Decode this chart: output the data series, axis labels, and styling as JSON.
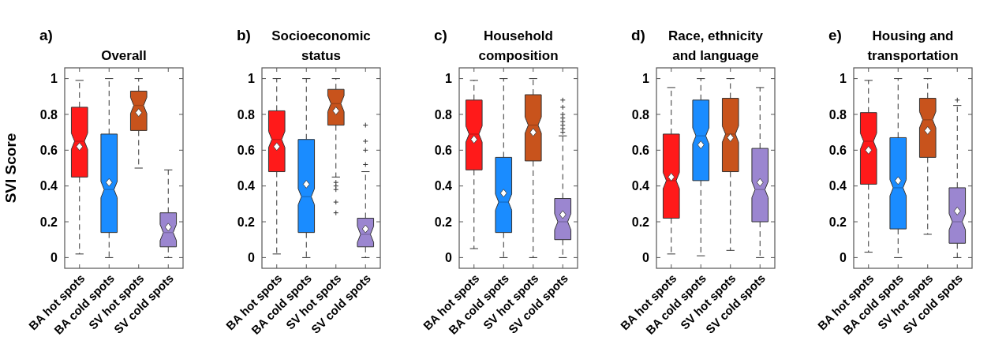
{
  "chart_data": [
    {
      "type": "box",
      "title": "Overall",
      "annotations": [
        "a)"
      ],
      "ylabel": "SVI Score",
      "categories": [
        "BA hot spots",
        "BA cold spots",
        "SV hot spots",
        "SV cold spots"
      ],
      "colors": [
        "#ff1a1a",
        "#1a8cff",
        "#c8531c",
        "#9b86d0"
      ],
      "ylim": [
        -0.06,
        1.06
      ],
      "yticks": [
        0,
        0.2,
        0.4,
        0.6,
        0.8,
        1
      ],
      "boxes": [
        {
          "low": 0.02,
          "q1": 0.45,
          "median": 0.65,
          "q3": 0.84,
          "high": 0.99,
          "mean": 0.62
        },
        {
          "low": 0,
          "q1": 0.14,
          "median": 0.38,
          "q3": 0.69,
          "high": 1,
          "mean": 0.42
        },
        {
          "low": 0.5,
          "q1": 0.71,
          "median": 0.85,
          "q3": 0.93,
          "high": 1,
          "mean": 0.81
        },
        {
          "low": 0,
          "q1": 0.06,
          "median": 0.14,
          "q3": 0.25,
          "high": 0.49,
          "mean": 0.17
        }
      ]
    },
    {
      "type": "box",
      "title": "Socioeconomic status",
      "annotations": [
        "b)"
      ],
      "categories": [
        "BA hot spots",
        "BA cold spots",
        "SV hot spots",
        "SV cold spots"
      ],
      "colors": [
        "#ff1a1a",
        "#1a8cff",
        "#c8531c",
        "#9b86d0"
      ],
      "ylim": [
        -0.06,
        1.06
      ],
      "yticks": [
        0,
        0.2,
        0.4,
        0.6,
        0.8,
        1
      ],
      "boxes": [
        {
          "low": 0.02,
          "q1": 0.48,
          "median": 0.66,
          "q3": 0.82,
          "high": 1,
          "mean": 0.62
        },
        {
          "low": 0,
          "q1": 0.14,
          "median": 0.34,
          "q3": 0.66,
          "high": 1,
          "mean": 0.41
        },
        {
          "low": 0.45,
          "q1": 0.74,
          "median": 0.86,
          "q3": 0.94,
          "high": 1,
          "mean": 0.82,
          "outliers": [
            0.42,
            0.4,
            0.38,
            0.31,
            0.25
          ]
        },
        {
          "low": 0,
          "q1": 0.06,
          "median": 0.13,
          "q3": 0.22,
          "high": 0.48,
          "mean": 0.16,
          "outliers": [
            0.52,
            0.6,
            0.65,
            0.74
          ]
        }
      ]
    },
    {
      "type": "box",
      "title": "Household composition",
      "annotations": [
        "c)"
      ],
      "categories": [
        "BA hot spots",
        "BA cold spots",
        "SV hot spots",
        "SV cold spots"
      ],
      "colors": [
        "#ff1a1a",
        "#1a8cff",
        "#c8531c",
        "#9b86d0"
      ],
      "ylim": [
        -0.06,
        1.06
      ],
      "yticks": [
        0,
        0.2,
        0.4,
        0.6,
        0.8,
        1
      ],
      "boxes": [
        {
          "low": 0.05,
          "q1": 0.49,
          "median": 0.69,
          "q3": 0.88,
          "high": 0.99,
          "mean": 0.66
        },
        {
          "low": 0,
          "q1": 0.14,
          "median": 0.31,
          "q3": 0.56,
          "high": 1,
          "mean": 0.36
        },
        {
          "low": 0,
          "q1": 0.54,
          "median": 0.74,
          "q3": 0.91,
          "high": 1,
          "mean": 0.7
        },
        {
          "low": 0,
          "q1": 0.1,
          "median": 0.2,
          "q3": 0.33,
          "high": 0.68,
          "mean": 0.24,
          "outliers": [
            0.7,
            0.72,
            0.74,
            0.76,
            0.78,
            0.8,
            0.84,
            0.88
          ]
        }
      ]
    },
    {
      "type": "box",
      "title": "Race, ethnicity and language",
      "annotations": [
        "d)"
      ],
      "categories": [
        "BA hot spots",
        "BA cold spots",
        "SV hot spots",
        "SV cold spots"
      ],
      "colors": [
        "#ff1a1a",
        "#1a8cff",
        "#c8531c",
        "#9b86d0"
      ],
      "ylim": [
        -0.06,
        1.06
      ],
      "yticks": [
        0,
        0.2,
        0.4,
        0.6,
        0.8,
        1
      ],
      "boxes": [
        {
          "low": 0.02,
          "q1": 0.22,
          "median": 0.43,
          "q3": 0.69,
          "high": 0.95,
          "mean": 0.45
        },
        {
          "low": 0.01,
          "q1": 0.43,
          "median": 0.68,
          "q3": 0.88,
          "high": 1,
          "mean": 0.63
        },
        {
          "low": 0.04,
          "q1": 0.48,
          "median": 0.69,
          "q3": 0.89,
          "high": 1,
          "mean": 0.67
        },
        {
          "low": 0,
          "q1": 0.2,
          "median": 0.38,
          "q3": 0.61,
          "high": 0.95,
          "mean": 0.42
        }
      ]
    },
    {
      "type": "box",
      "title": "Housing and transportation",
      "annotations": [
        "e)"
      ],
      "categories": [
        "BA hot spots",
        "BA cold spots",
        "SV hot spots",
        "SV cold spots"
      ],
      "colors": [
        "#ff1a1a",
        "#1a8cff",
        "#c8531c",
        "#9b86d0"
      ],
      "ylim": [
        -0.06,
        1.06
      ],
      "yticks": [
        0,
        0.2,
        0.4,
        0.6,
        0.8,
        1
      ],
      "boxes": [
        {
          "low": 0.03,
          "q1": 0.41,
          "median": 0.65,
          "q3": 0.81,
          "high": 0.99,
          "mean": 0.6
        },
        {
          "low": 0,
          "q1": 0.16,
          "median": 0.39,
          "q3": 0.67,
          "high": 1,
          "mean": 0.43
        },
        {
          "low": 0.13,
          "q1": 0.56,
          "median": 0.77,
          "q3": 0.89,
          "high": 1,
          "mean": 0.71
        },
        {
          "low": 0,
          "q1": 0.08,
          "median": 0.2,
          "q3": 0.39,
          "high": 0.85,
          "mean": 0.26,
          "outliers": [
            0.88
          ]
        }
      ]
    }
  ]
}
